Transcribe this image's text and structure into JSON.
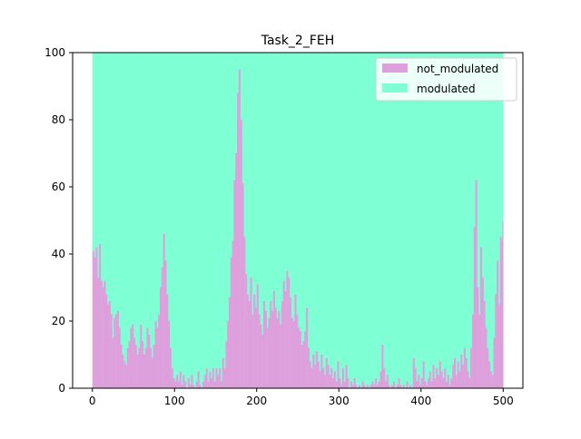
{
  "chart_data": {
    "type": "bar",
    "stacked": true,
    "title": "Task_2_FEH",
    "xlabel": "",
    "ylabel": "",
    "xlim": [
      -24,
      524
    ],
    "ylim": [
      0,
      100
    ],
    "x_ticks": [
      0,
      100,
      200,
      300,
      400,
      500
    ],
    "y_ticks": [
      0,
      20,
      40,
      60,
      80,
      100
    ],
    "total": 100,
    "legend_position": "top-right",
    "series": [
      {
        "name": "not_modulated",
        "color": "#DDA0DD"
      },
      {
        "name": "modulated",
        "color": "#7FFFD4"
      }
    ],
    "not_modulated_control_points": [
      [
        0,
        41
      ],
      [
        2,
        39
      ],
      [
        4,
        42
      ],
      [
        6,
        33
      ],
      [
        8,
        43
      ],
      [
        10,
        32
      ],
      [
        12,
        30
      ],
      [
        14,
        32
      ],
      [
        16,
        28
      ],
      [
        18,
        25
      ],
      [
        20,
        26
      ],
      [
        22,
        22
      ],
      [
        24,
        15
      ],
      [
        26,
        21
      ],
      [
        28,
        22
      ],
      [
        30,
        23
      ],
      [
        32,
        18
      ],
      [
        34,
        13
      ],
      [
        36,
        10
      ],
      [
        38,
        8
      ],
      [
        40,
        7
      ],
      [
        42,
        12
      ],
      [
        44,
        14
      ],
      [
        46,
        18
      ],
      [
        48,
        19
      ],
      [
        50,
        15
      ],
      [
        52,
        13
      ],
      [
        54,
        10
      ],
      [
        56,
        12
      ],
      [
        58,
        19
      ],
      [
        60,
        14
      ],
      [
        62,
        10
      ],
      [
        64,
        12
      ],
      [
        66,
        18
      ],
      [
        68,
        16
      ],
      [
        70,
        12
      ],
      [
        72,
        9
      ],
      [
        74,
        13
      ],
      [
        76,
        20
      ],
      [
        78,
        18
      ],
      [
        80,
        22
      ],
      [
        82,
        30
      ],
      [
        84,
        36
      ],
      [
        86,
        46
      ],
      [
        88,
        38
      ],
      [
        90,
        28
      ],
      [
        92,
        20
      ],
      [
        94,
        12
      ],
      [
        96,
        6
      ],
      [
        98,
        3
      ],
      [
        100,
        2
      ],
      [
        102,
        4
      ],
      [
        104,
        2
      ],
      [
        106,
        5
      ],
      [
        108,
        1
      ],
      [
        110,
        4
      ],
      [
        112,
        2
      ],
      [
        114,
        0
      ],
      [
        116,
        3
      ],
      [
        118,
        1
      ],
      [
        120,
        4
      ],
      [
        122,
        1
      ],
      [
        124,
        0
      ],
      [
        126,
        2
      ],
      [
        128,
        5
      ],
      [
        130,
        1
      ],
      [
        132,
        0
      ],
      [
        134,
        2
      ],
      [
        136,
        4
      ],
      [
        138,
        6
      ],
      [
        140,
        2
      ],
      [
        142,
        5
      ],
      [
        144,
        3
      ],
      [
        146,
        6
      ],
      [
        148,
        2
      ],
      [
        150,
        6
      ],
      [
        152,
        4
      ],
      [
        154,
        6
      ],
      [
        156,
        2
      ],
      [
        158,
        9
      ],
      [
        160,
        6
      ],
      [
        162,
        14
      ],
      [
        164,
        20
      ],
      [
        166,
        27
      ],
      [
        168,
        39
      ],
      [
        170,
        44
      ],
      [
        172,
        62
      ],
      [
        174,
        70
      ],
      [
        176,
        88
      ],
      [
        178,
        95
      ],
      [
        180,
        80
      ],
      [
        182,
        61
      ],
      [
        184,
        45
      ],
      [
        186,
        34
      ],
      [
        188,
        28
      ],
      [
        190,
        26
      ],
      [
        192,
        33
      ],
      [
        194,
        22
      ],
      [
        196,
        28
      ],
      [
        198,
        24
      ],
      [
        200,
        31
      ],
      [
        202,
        22
      ],
      [
        204,
        19
      ],
      [
        206,
        16
      ],
      [
        208,
        26
      ],
      [
        210,
        23
      ],
      [
        212,
        18
      ],
      [
        214,
        21
      ],
      [
        216,
        26
      ],
      [
        218,
        23
      ],
      [
        220,
        29
      ],
      [
        222,
        24
      ],
      [
        224,
        21
      ],
      [
        226,
        23
      ],
      [
        228,
        19
      ],
      [
        230,
        26
      ],
      [
        232,
        32
      ],
      [
        234,
        29
      ],
      [
        236,
        35
      ],
      [
        238,
        33
      ],
      [
        240,
        27
      ],
      [
        242,
        21
      ],
      [
        244,
        20
      ],
      [
        246,
        28
      ],
      [
        248,
        22
      ],
      [
        250,
        18
      ],
      [
        252,
        17
      ],
      [
        254,
        13
      ],
      [
        256,
        14
      ],
      [
        258,
        17
      ],
      [
        260,
        24
      ],
      [
        262,
        12
      ],
      [
        264,
        8
      ],
      [
        266,
        6
      ],
      [
        268,
        10
      ],
      [
        270,
        7
      ],
      [
        272,
        11
      ],
      [
        274,
        8
      ],
      [
        276,
        5
      ],
      [
        278,
        10
      ],
      [
        280,
        6
      ],
      [
        282,
        4
      ],
      [
        284,
        9
      ],
      [
        286,
        7
      ],
      [
        288,
        4
      ],
      [
        290,
        6
      ],
      [
        292,
        3
      ],
      [
        294,
        5
      ],
      [
        296,
        2
      ],
      [
        298,
        8
      ],
      [
        300,
        3
      ],
      [
        302,
        1
      ],
      [
        304,
        6
      ],
      [
        306,
        2
      ],
      [
        308,
        7
      ],
      [
        310,
        3
      ],
      [
        312,
        0
      ],
      [
        314,
        2
      ],
      [
        316,
        1
      ],
      [
        318,
        3
      ],
      [
        320,
        1
      ],
      [
        322,
        0
      ],
      [
        324,
        1
      ],
      [
        326,
        0
      ],
      [
        328,
        2
      ],
      [
        330,
        1
      ],
      [
        332,
        0
      ],
      [
        334,
        1
      ],
      [
        336,
        0
      ],
      [
        338,
        1
      ],
      [
        340,
        2
      ],
      [
        342,
        1
      ],
      [
        344,
        3
      ],
      [
        346,
        1
      ],
      [
        348,
        2
      ],
      [
        350,
        5
      ],
      [
        352,
        13
      ],
      [
        354,
        6
      ],
      [
        356,
        2
      ],
      [
        358,
        4
      ],
      [
        360,
        1
      ],
      [
        362,
        0
      ],
      [
        364,
        1
      ],
      [
        366,
        2
      ],
      [
        368,
        0
      ],
      [
        370,
        1
      ],
      [
        372,
        3
      ],
      [
        374,
        1
      ],
      [
        376,
        0
      ],
      [
        378,
        1
      ],
      [
        380,
        0
      ],
      [
        382,
        2
      ],
      [
        384,
        0
      ],
      [
        386,
        1
      ],
      [
        388,
        0
      ],
      [
        390,
        9
      ],
      [
        392,
        6
      ],
      [
        394,
        2
      ],
      [
        396,
        4
      ],
      [
        398,
        1
      ],
      [
        400,
        3
      ],
      [
        402,
        8
      ],
      [
        404,
        2
      ],
      [
        406,
        1
      ],
      [
        408,
        3
      ],
      [
        410,
        5
      ],
      [
        412,
        2
      ],
      [
        414,
        7
      ],
      [
        416,
        3
      ],
      [
        418,
        6
      ],
      [
        420,
        4
      ],
      [
        422,
        8
      ],
      [
        424,
        5
      ],
      [
        426,
        3
      ],
      [
        428,
        6
      ],
      [
        430,
        2
      ],
      [
        432,
        4
      ],
      [
        434,
        1
      ],
      [
        436,
        3
      ],
      [
        438,
        7
      ],
      [
        440,
        9
      ],
      [
        442,
        4
      ],
      [
        444,
        8
      ],
      [
        446,
        5
      ],
      [
        448,
        10
      ],
      [
        450,
        7
      ],
      [
        452,
        12
      ],
      [
        454,
        9
      ],
      [
        456,
        5
      ],
      [
        458,
        3
      ],
      [
        460,
        12
      ],
      [
        462,
        22
      ],
      [
        464,
        48
      ],
      [
        466,
        62
      ],
      [
        468,
        30
      ],
      [
        470,
        22
      ],
      [
        472,
        42
      ],
      [
        474,
        33
      ],
      [
        476,
        26
      ],
      [
        478,
        18
      ],
      [
        480,
        12
      ],
      [
        482,
        8
      ],
      [
        484,
        5
      ],
      [
        486,
        4
      ],
      [
        488,
        15
      ],
      [
        490,
        28
      ],
      [
        492,
        38
      ],
      [
        494,
        25
      ],
      [
        496,
        45
      ],
      [
        498,
        44
      ],
      [
        499,
        50
      ]
    ]
  }
}
